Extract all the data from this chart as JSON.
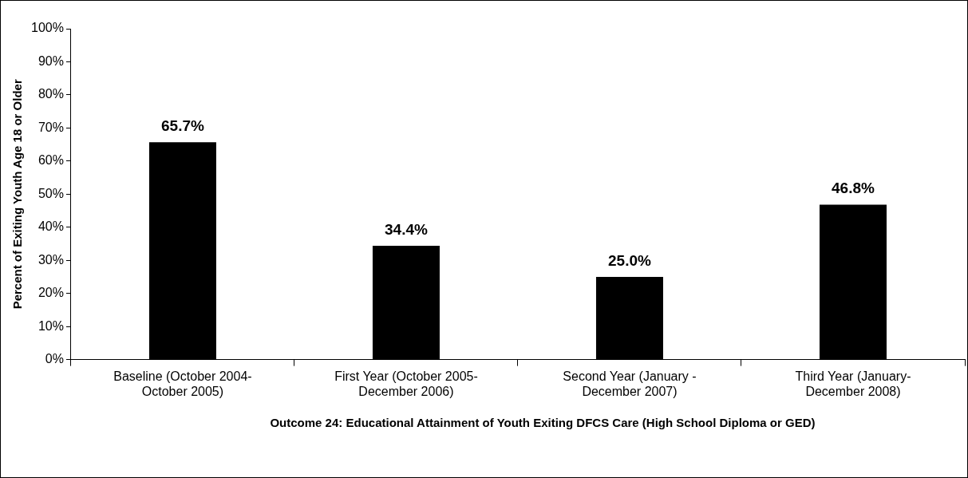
{
  "chart_data": {
    "type": "bar",
    "categories": [
      "Baseline (October 2004-October 2005)",
      "First Year (October 2005-December 2006)",
      "Second Year (January - December 2007)",
      "Third Year (January-December 2008)"
    ],
    "values": [
      65.7,
      34.4,
      25.0,
      46.8
    ],
    "value_labels": [
      "65.7%",
      "34.4%",
      "25.0%",
      "46.8%"
    ],
    "color": "#000000",
    "xlabel": "Outcome 24: Educational Attainment of Youth Exiting DFCS Care (High School Diploma or GED)",
    "ylabel": "Percent of Exiting Youth Age 18 or Older",
    "ylim": [
      0,
      100
    ],
    "yticks": [
      {
        "value": 0,
        "label": "0%"
      },
      {
        "value": 10,
        "label": "10%"
      },
      {
        "value": 20,
        "label": "20%"
      },
      {
        "value": 30,
        "label": "30%"
      },
      {
        "value": 40,
        "label": "40%"
      },
      {
        "value": 50,
        "label": "50%"
      },
      {
        "value": 60,
        "label": "60%"
      },
      {
        "value": 70,
        "label": "70%"
      },
      {
        "value": 80,
        "label": "80%"
      },
      {
        "value": 90,
        "label": "90%"
      },
      {
        "value": 100,
        "label": "100%"
      }
    ],
    "grid": false,
    "legend": false
  }
}
